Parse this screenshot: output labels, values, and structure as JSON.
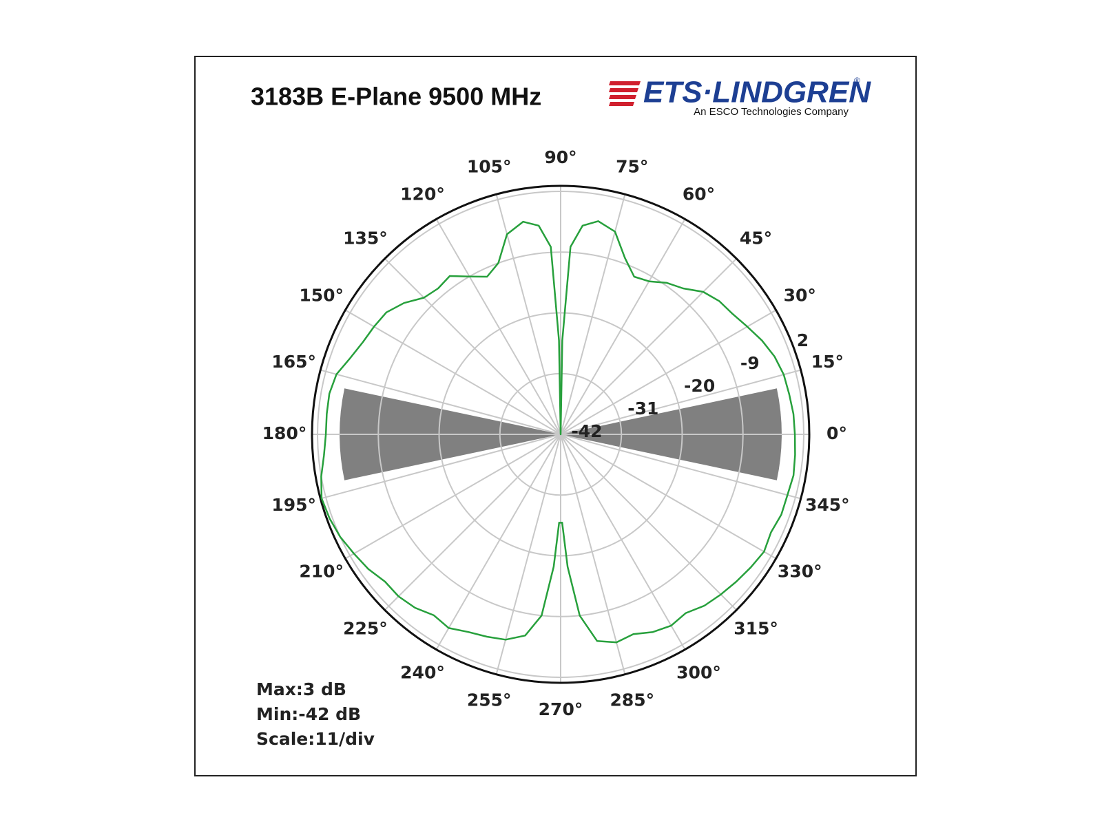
{
  "logo": {
    "name": "ETS·LINDGREN",
    "mark": "®",
    "tagline": "An ESCO Technologies Company"
  },
  "chart_data": {
    "type": "polar",
    "title": "3183B E-Plane 9500 MHz",
    "theta": [
      0,
      5,
      10,
      15,
      20,
      25,
      30,
      35,
      40,
      45,
      50,
      55,
      60,
      65,
      70,
      75,
      80,
      84,
      87,
      89,
      90,
      91,
      93,
      96,
      100,
      105,
      110,
      115,
      120,
      125,
      130,
      135,
      140,
      145,
      150,
      155,
      160,
      165,
      170,
      175,
      180,
      185,
      190,
      195,
      200,
      205,
      210,
      215,
      220,
      225,
      230,
      235,
      240,
      245,
      250,
      255,
      260,
      264,
      267,
      269,
      270,
      271,
      273,
      276,
      280,
      285,
      290,
      295,
      300,
      305,
      310,
      315,
      320,
      325,
      330,
      335,
      340,
      345,
      350,
      355
    ],
    "values": [
      0.4,
      0.3,
      0.0,
      -0.2,
      -0.8,
      -1.8,
      -3.0,
      -4.0,
      -4.5,
      -5.5,
      -7.5,
      -8.5,
      -10.0,
      -10.5,
      -8.0,
      -4.0,
      -2.8,
      -4.0,
      -8.0,
      -25.0,
      -42.0,
      -25.0,
      -8.0,
      -4.0,
      -2.9,
      -4.5,
      -9.0,
      -10.5,
      -9.0,
      -7.0,
      -7.5,
      -7.0,
      -5.0,
      -3.5,
      -3.0,
      -2.5,
      -1.5,
      0.0,
      0.5,
      0.5,
      0.5,
      1.0,
      2.0,
      2.8,
      2.5,
      2.0,
      1.2,
      0.5,
      -0.5,
      -0.5,
      -1.0,
      -2.0,
      -1.5,
      -2.5,
      -3.0,
      -3.5,
      -5.0,
      -9.0,
      -18.0,
      -26.0,
      -26.0,
      -26.0,
      -18.0,
      -9.0,
      -4.0,
      -3.0,
      -3.5,
      -2.5,
      -2.0,
      -2.5,
      -1.5,
      -1.0,
      -0.5,
      0.0,
      0.5,
      0.0,
      0.5,
      0.5,
      0.8,
      0.6
    ],
    "color": "#27a03c",
    "rlim": [
      -42,
      3
    ],
    "rticks": [
      -42,
      -31,
      -20,
      -9,
      2
    ],
    "thetaticks": [
      {
        "value": 0,
        "label": "0°"
      },
      {
        "value": 15,
        "label": "15°"
      },
      {
        "value": 30,
        "label": "30°"
      },
      {
        "value": 45,
        "label": "45°"
      },
      {
        "value": 60,
        "label": "60°"
      },
      {
        "value": 75,
        "label": "75°"
      },
      {
        "value": 90,
        "label": "90°"
      },
      {
        "value": 105,
        "label": "105°"
      },
      {
        "value": 120,
        "label": "120°"
      },
      {
        "value": 135,
        "label": "135°"
      },
      {
        "value": 150,
        "label": "150°"
      },
      {
        "value": 165,
        "label": "165°"
      },
      {
        "value": 180,
        "label": "180°"
      },
      {
        "value": 195,
        "label": "195°"
      },
      {
        "value": 210,
        "label": "210°"
      },
      {
        "value": 225,
        "label": "225°"
      },
      {
        "value": 240,
        "label": "240°"
      },
      {
        "value": 255,
        "label": "255°"
      },
      {
        "value": 270,
        "label": "270°"
      },
      {
        "value": 285,
        "label": "285°"
      },
      {
        "value": 300,
        "label": "300°"
      },
      {
        "value": 315,
        "label": "315°"
      },
      {
        "value": 330,
        "label": "330°"
      },
      {
        "value": 345,
        "label": "345°"
      }
    ],
    "shaded_sectors": [
      {
        "theta": [
          -12,
          12
        ],
        "r": -2
      },
      {
        "theta": [
          168,
          192
        ],
        "r": -2
      }
    ],
    "shade_color": "#808080",
    "grid": true,
    "annotations": [
      "Max:3 dB",
      "Min:-42 dB",
      "Scale:11/div"
    ]
  }
}
